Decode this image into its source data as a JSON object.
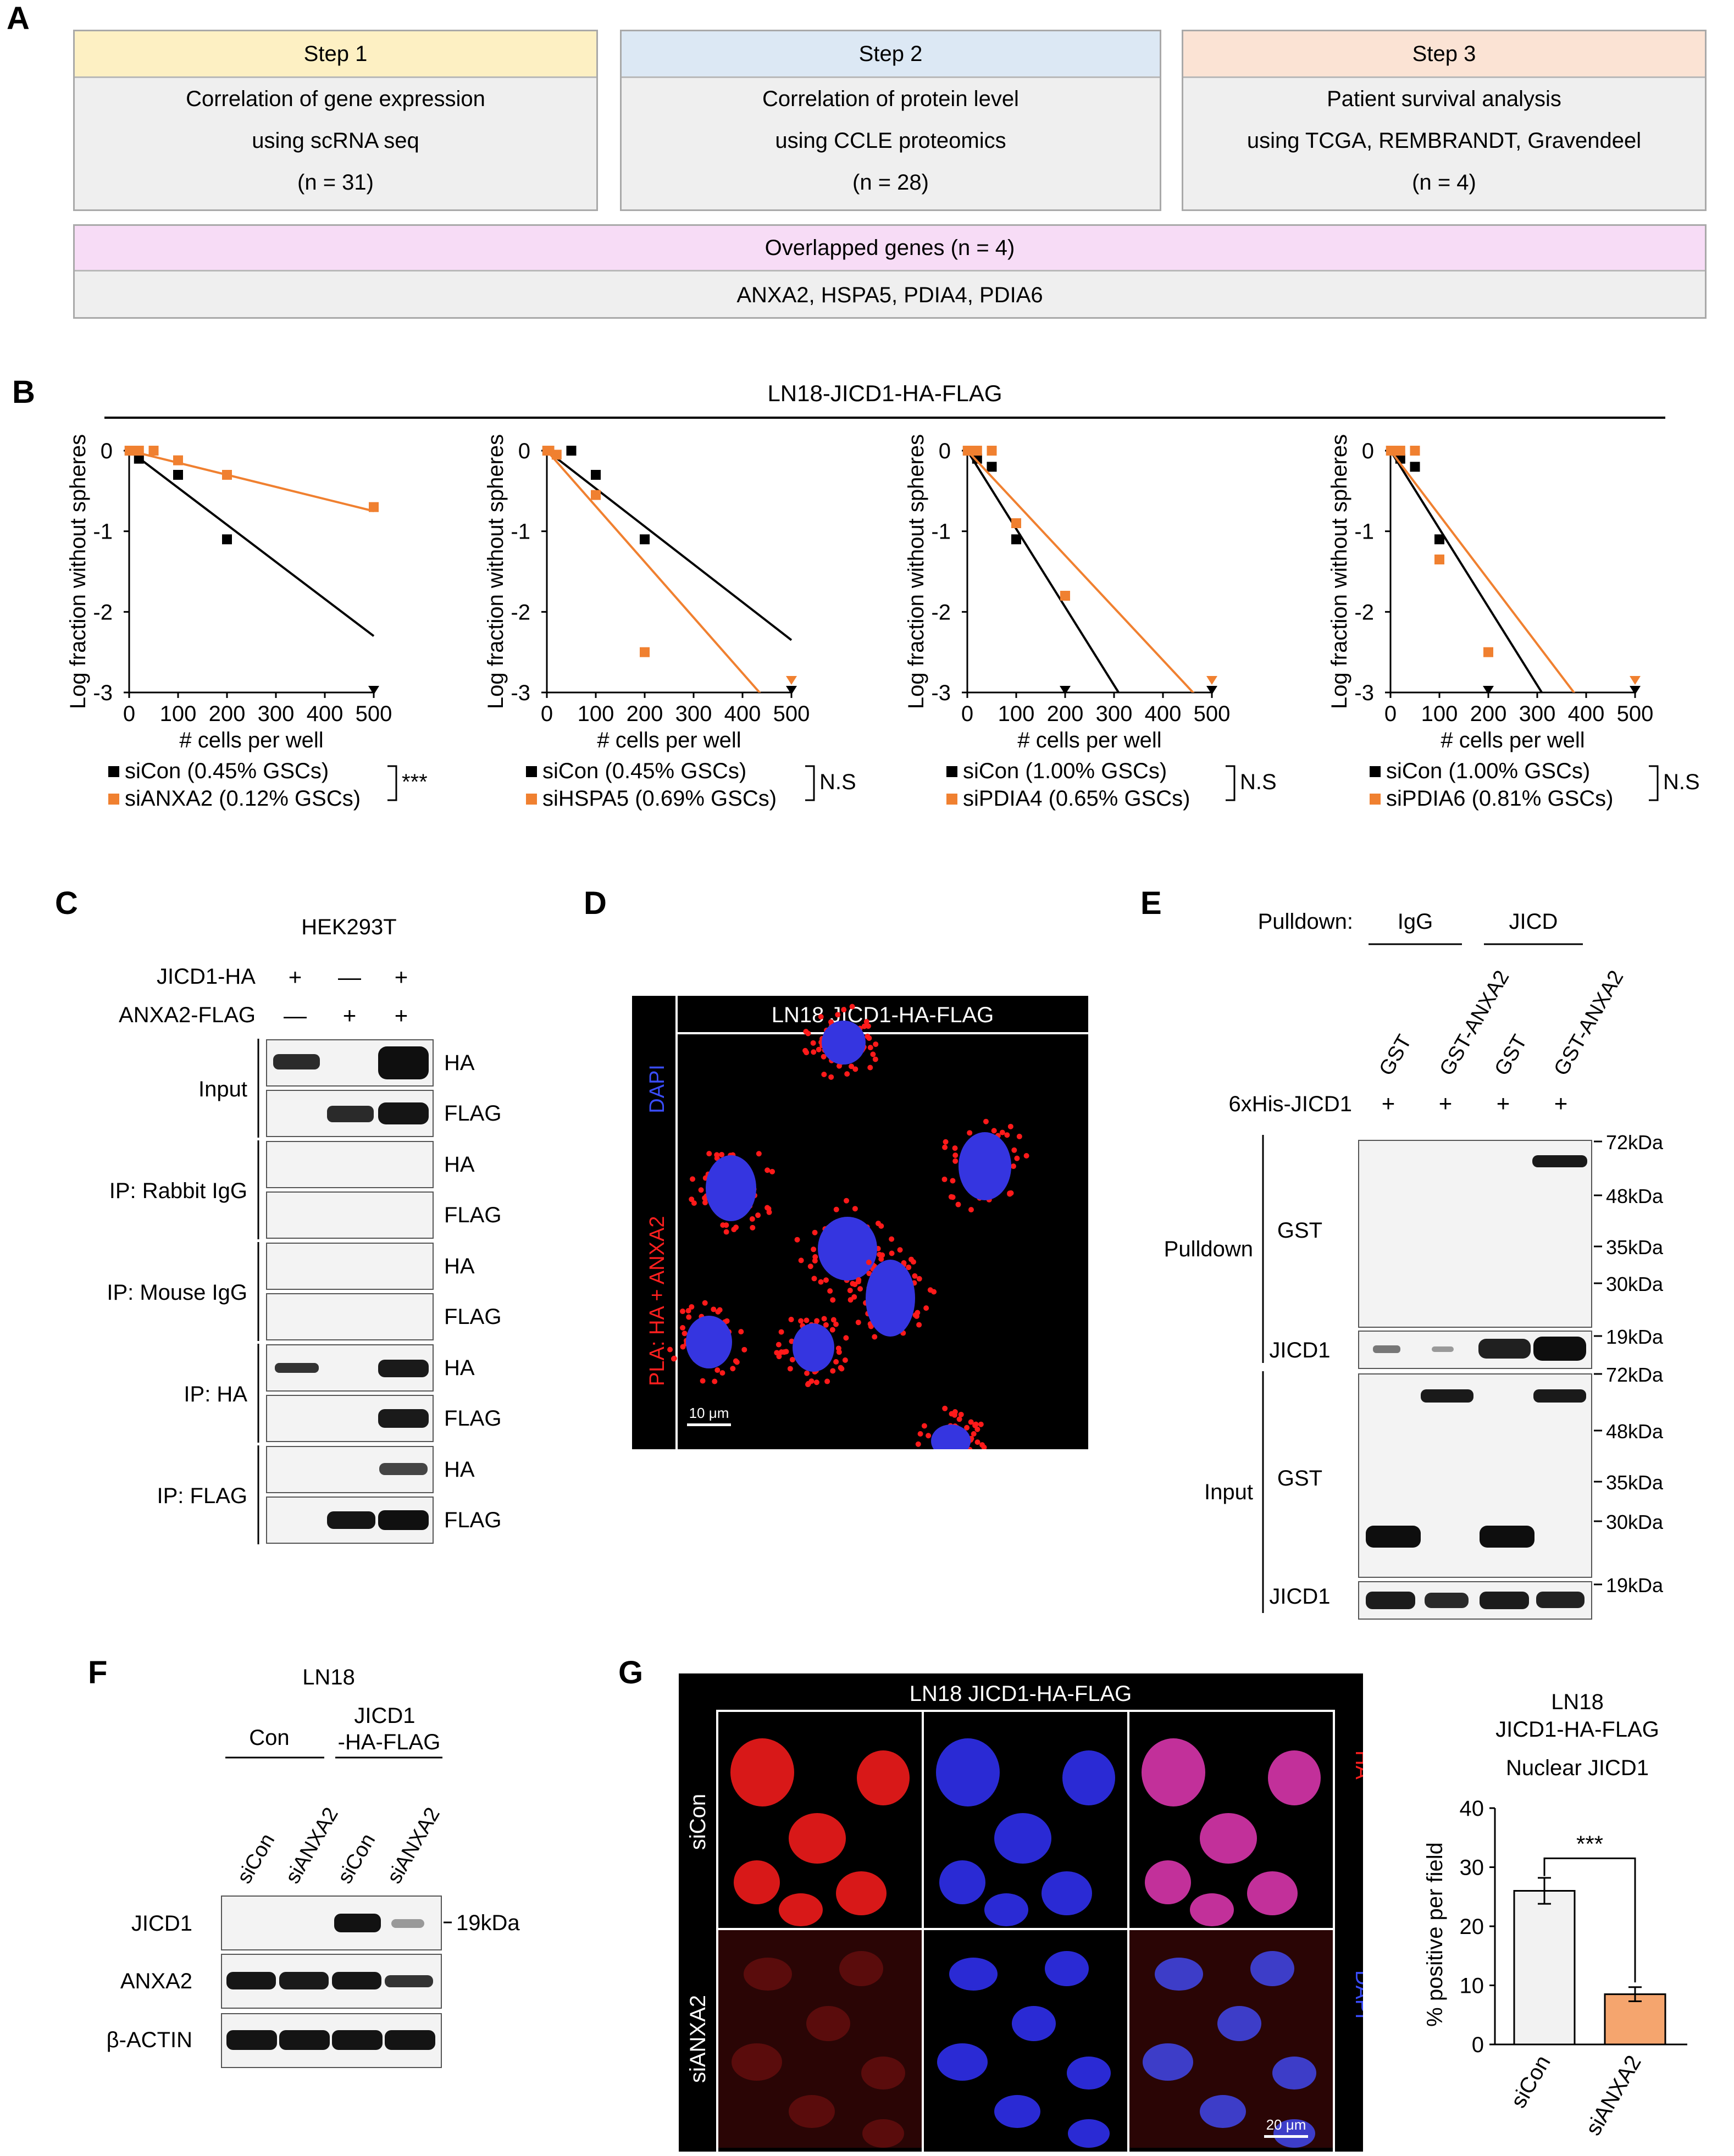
{
  "panels": {
    "A": {
      "label": "A",
      "steps": [
        {
          "title": "Step 1",
          "line1": "Correlation of gene expression",
          "line2": "using scRNA seq",
          "n": "(n = 31)",
          "color": "#fdf0c3"
        },
        {
          "title": "Step 2",
          "line1": "Correlation of protein level",
          "line2": "using CCLE proteomics",
          "n": "(n = 28)",
          "color": "#dce8f4"
        },
        {
          "title": "Step 3",
          "line1": "Patient survival analysis",
          "line2": "using TCGA, REMBRANDT, Gravendeel",
          "n": "(n = 4)",
          "color": "#fbe3d4"
        }
      ],
      "overlap": {
        "title": "Overlapped genes (n = 4)",
        "genes": "ANXA2, HSPA5, PDIA4, PDIA6",
        "color": "#f7dcf6"
      }
    },
    "B": {
      "label": "B",
      "title": "LN18-JICD1-HA-FLAG"
    },
    "C": {
      "label": "C",
      "cell_line": "HEK293T",
      "rows": [
        "JICD1-HA",
        "ANXA2-FLAG"
      ],
      "row1_marks": [
        "+",
        "—",
        "+"
      ],
      "row2_marks": [
        "—",
        "+",
        "+"
      ],
      "groups": [
        "Input",
        "IP: Rabbit IgG",
        "IP: Mouse IgG",
        "IP: HA",
        "IP: FLAG"
      ],
      "blot_ha": "HA",
      "blot_flag": "FLAG"
    },
    "D": {
      "label": "D",
      "title": "LN18 JICD1-HA-FLAG",
      "channel_dapi": "DAPI",
      "channel_pla": "PLA: HA + ANXA2",
      "scale": "10 μm"
    },
    "E": {
      "label": "E",
      "pulldown_label": "Pulldown:",
      "groups": [
        "IgG",
        "JICD"
      ],
      "lanes": [
        "GST",
        "GST-ANXA2",
        "GST",
        "GST-ANXA2"
      ],
      "his_label": "6xHis-JICD1",
      "his_marks": [
        "+",
        "+",
        "+",
        "+"
      ],
      "section_pulldown": "Pulldown",
      "section_input": "Input",
      "blot_gst": "GST",
      "blot_jicd1": "JICD1",
      "markers_pulldown": [
        "72kDa",
        "48kDa",
        "35kDa",
        "30kDa",
        "19kDa"
      ],
      "markers_input": [
        "72kDa",
        "48kDa",
        "35kDa",
        "30kDa",
        "19kDa"
      ]
    },
    "F": {
      "label": "F",
      "cell_line": "LN18",
      "group_con": "Con",
      "group_jicd1_l1": "JICD1",
      "group_jicd1_l2": "-HA-FLAG",
      "lanes": [
        "siCon",
        "siANXA2",
        "siCon",
        "siANXA2"
      ],
      "blots": [
        "JICD1",
        "ANXA2",
        "β-ACTIN"
      ],
      "marker": "19kDa"
    },
    "G": {
      "label": "G",
      "title": "LN18 JICD1-HA-FLAG",
      "rows": [
        "siCon",
        "siANXA2"
      ],
      "channel_ha": "HA",
      "channel_dapi": "DAPI",
      "scale": "20 μm",
      "bar_title_1": "LN18",
      "bar_title_2": "JICD1-HA-FLAG",
      "bar_title_3": "Nuclear JICD1",
      "bar_ylabel": "% positive per field",
      "significance": "***"
    }
  },
  "chart_data": [
    {
      "type": "scatter",
      "xlabel": "# cells per well",
      "ylabel": "Log fraction without spheres",
      "xlim": [
        0,
        500
      ],
      "ylim": [
        -3,
        0
      ],
      "xticks": [
        0,
        100,
        200,
        300,
        400,
        500
      ],
      "yticks": [
        0,
        -1,
        -2,
        -3
      ],
      "series": [
        {
          "name": "siCon (0.45% GSCs)",
          "color": "#000000",
          "x": [
            1,
            5,
            20,
            100,
            200
          ],
          "y": [
            0,
            0,
            -0.1,
            -0.3,
            -1.1
          ],
          "capped_x": [
            500
          ],
          "fit_end_y": -2.3
        },
        {
          "name": "siANXA2 (0.12% GSCs)",
          "color": "#f08030",
          "x": [
            1,
            5,
            20,
            50,
            100,
            200,
            500
          ],
          "y": [
            0,
            0,
            0,
            0,
            -0.12,
            -0.3,
            -0.7
          ],
          "fit_end_y": -0.75
        }
      ],
      "significance": "***"
    },
    {
      "type": "scatter",
      "xlabel": "# cells per well",
      "ylabel": "Log fraction without spheres",
      "xlim": [
        0,
        500
      ],
      "ylim": [
        -3,
        0
      ],
      "xticks": [
        0,
        100,
        200,
        300,
        400,
        500
      ],
      "yticks": [
        0,
        -1,
        -2,
        -3
      ],
      "series": [
        {
          "name": "siCon (0.45% GSCs)",
          "color": "#000000",
          "x": [
            1,
            5,
            50,
            100,
            200
          ],
          "y": [
            0,
            0,
            0,
            -0.3,
            -1.1
          ],
          "capped_x": [
            500
          ],
          "fit_end_y": -2.35
        },
        {
          "name": "siHSPA5 (0.69% GSCs)",
          "color": "#f08030",
          "x": [
            1,
            5,
            20,
            100,
            200
          ],
          "y": [
            0,
            0,
            -0.05,
            -0.55,
            -2.5
          ],
          "capped_x": [
            500
          ],
          "fit_end_y": -3.45
        }
      ],
      "significance": "N.S"
    },
    {
      "type": "scatter",
      "xlabel": "# cells per well",
      "ylabel": "Log fraction without spheres",
      "xlim": [
        0,
        500
      ],
      "ylim": [
        -3,
        0
      ],
      "xticks": [
        0,
        100,
        200,
        300,
        400,
        500
      ],
      "yticks": [
        0,
        -1,
        -2,
        -3
      ],
      "series": [
        {
          "name": "siCon (1.00% GSCs)",
          "color": "#000000",
          "x": [
            1,
            5,
            20,
            50,
            100
          ],
          "y": [
            0,
            0,
            -0.1,
            -0.2,
            -1.1
          ],
          "capped_x": [
            200,
            500
          ],
          "fit_end_y": -4.85
        },
        {
          "name": "siPDIA4 (0.65% GSCs)",
          "color": "#f08030",
          "x": [
            1,
            5,
            20,
            50,
            100,
            200
          ],
          "y": [
            0,
            0,
            0,
            0,
            -0.9,
            -1.8
          ],
          "capped_x": [
            500
          ],
          "fit_end_y": -3.25
        }
      ],
      "significance": "N.S"
    },
    {
      "type": "scatter",
      "xlabel": "# cells per well",
      "ylabel": "Log fraction without spheres",
      "xlim": [
        0,
        500
      ],
      "ylim": [
        -3,
        0
      ],
      "xticks": [
        0,
        100,
        200,
        300,
        400,
        500
      ],
      "yticks": [
        0,
        -1,
        -2,
        -3
      ],
      "series": [
        {
          "name": "siCon (1.00% GSCs)",
          "color": "#000000",
          "x": [
            1,
            5,
            20,
            50,
            100
          ],
          "y": [
            0,
            0,
            -0.1,
            -0.2,
            -1.1
          ],
          "capped_x": [
            200,
            500
          ],
          "fit_end_y": -4.85
        },
        {
          "name": "siPDIA6 (0.81% GSCs)",
          "color": "#f08030",
          "x": [
            1,
            5,
            20,
            50,
            100,
            200
          ],
          "y": [
            0,
            0,
            0,
            0,
            -1.35,
            -2.5
          ],
          "capped_x": [
            500
          ],
          "fit_end_y": -4.0
        }
      ],
      "significance": "N.S"
    },
    {
      "type": "bar",
      "title": "Nuclear JICD1",
      "categories": [
        "siCon",
        "siANXA2"
      ],
      "values": [
        26,
        8.5
      ],
      "errors": [
        2.2,
        1.2
      ],
      "colors": [
        "#f2f2f2",
        "#f5a56e"
      ],
      "ylabel": "% positive per field",
      "ylim": [
        0,
        40
      ],
      "yticks": [
        0,
        10,
        20,
        30,
        40
      ],
      "significance": "***"
    }
  ]
}
